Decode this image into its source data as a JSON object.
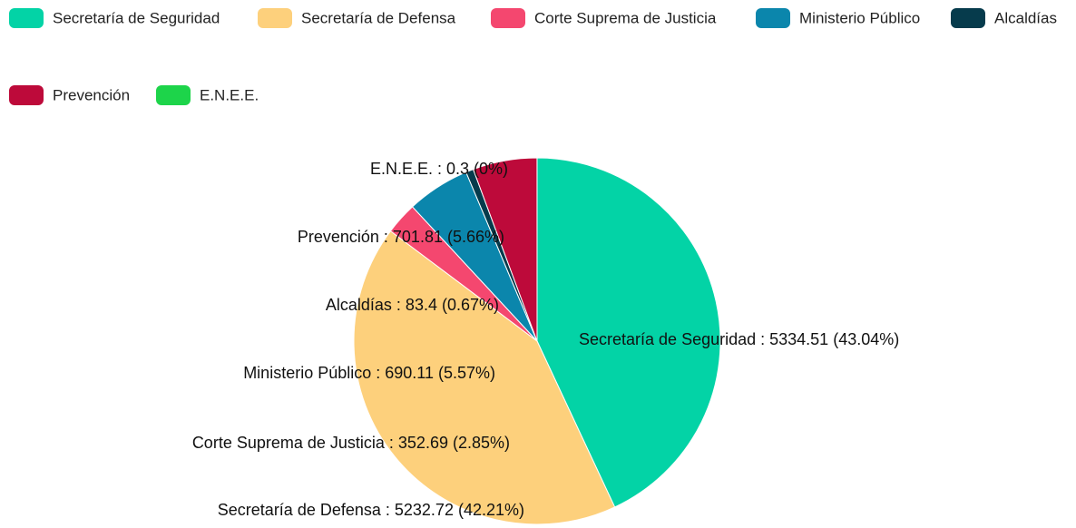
{
  "chart_data": {
    "type": "pie",
    "categories": [
      "Secretaría de Seguridad",
      "Secretaría de Defensa",
      "Corte Suprema de Justicia",
      "Ministerio Público",
      "Alcaldías",
      "Prevención",
      "E.N.E.E."
    ],
    "values": [
      5334.51,
      5232.72,
      352.69,
      690.11,
      83.4,
      701.81,
      0.3
    ],
    "value_labels": [
      "Secretaría de Seguridad : 5334.51 (43.04%)",
      "Secretaría de Defensa : 5232.72 (42.21%)",
      "Corte Suprema de Justicia : 352.69 (2.85%)",
      "Ministerio Público : 690.11 (5.57%)",
      "Alcaldías : 83.4 (0.67%)",
      "Prevención : 701.81 (5.66%)",
      "E.N.E.E. : 0.3 (0%)"
    ],
    "colors": [
      "#03d3a6",
      "#fdd07c",
      "#f4476f",
      "#0b86ac",
      "#063b4c",
      "#bd0a3a",
      "#1dd44a"
    ],
    "legend": "top"
  }
}
